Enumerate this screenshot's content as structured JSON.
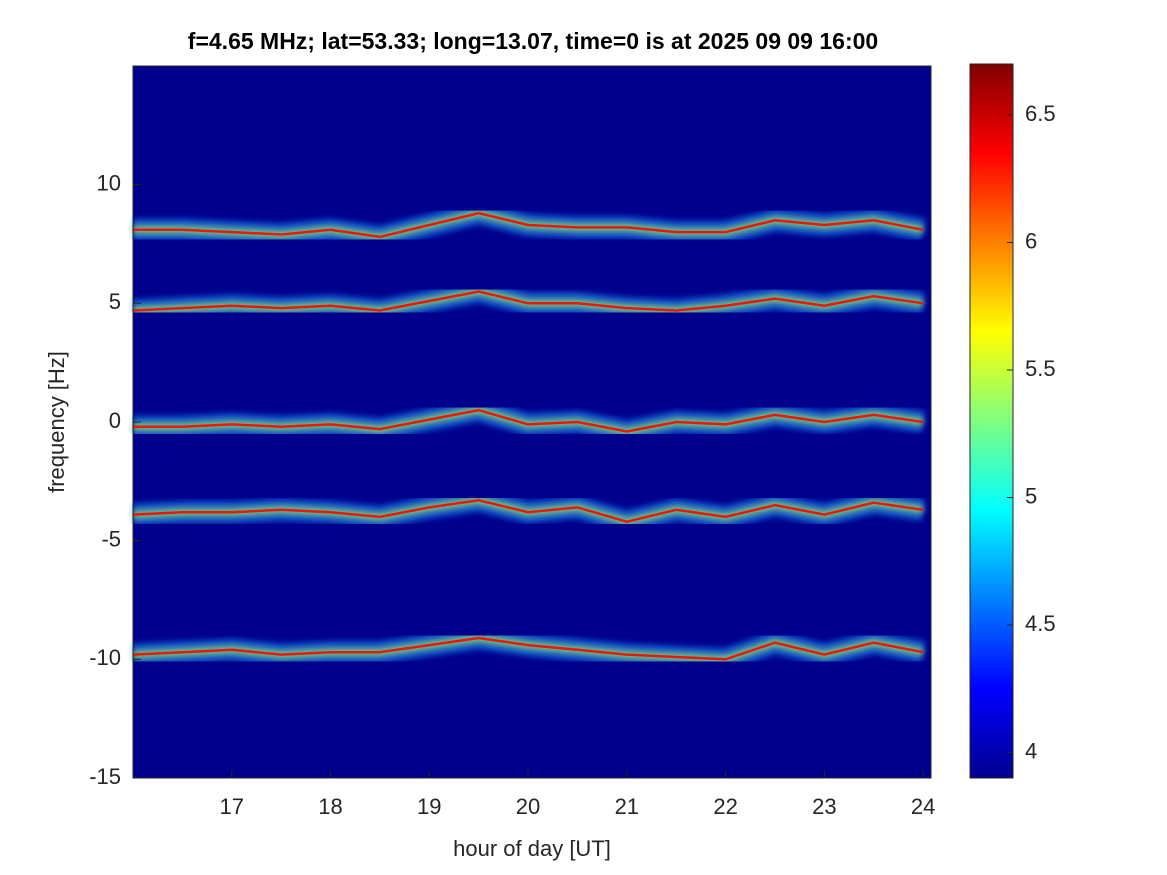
{
  "chart_data": {
    "type": "spectrogram",
    "title": "f=4.65 MHz;  lat=53.33; long=13.07, time=0 is at 2025 09 09 16:00",
    "x_label": "hour of day [UT]",
    "y_label": "frequency [Hz]",
    "xlim": [
      16,
      24.08
    ],
    "xticks": [
      17,
      18,
      19,
      20,
      21,
      22,
      23,
      24
    ],
    "ylim": [
      -15,
      15
    ],
    "yticks": [
      -15,
      -10,
      -5,
      0,
      5,
      10
    ],
    "clim": [
      3.9,
      6.7
    ],
    "cticks": [
      4,
      4.5,
      5,
      5.5,
      6,
      6.5
    ],
    "colormap": "jet",
    "background_color": "#00008c",
    "x": [
      16,
      16.5,
      17,
      17.5,
      18,
      18.5,
      19,
      19.5,
      20,
      20.5,
      21,
      21.5,
      22,
      22.5,
      23,
      23.5,
      24
    ],
    "series": [
      {
        "color": "#e8180c",
        "values": [
          8.1,
          8.1,
          8.0,
          7.9,
          8.1,
          7.8,
          8.3,
          8.8,
          8.3,
          8.2,
          8.2,
          8.0,
          8.0,
          8.5,
          8.3,
          8.5,
          8.1
        ]
      },
      {
        "color": "#e8180c",
        "values": [
          4.7,
          4.8,
          4.9,
          4.8,
          4.9,
          4.7,
          5.1,
          5.5,
          5.0,
          5.0,
          4.8,
          4.7,
          4.9,
          5.2,
          4.9,
          5.3,
          5.0
        ]
      },
      {
        "color": "#e8180c",
        "values": [
          -0.2,
          -0.2,
          -0.1,
          -0.2,
          -0.1,
          -0.3,
          0.1,
          0.5,
          -0.1,
          0.0,
          -0.4,
          0.0,
          -0.1,
          0.3,
          0.0,
          0.3,
          0.0
        ]
      },
      {
        "color": "#e8180c",
        "values": [
          -3.9,
          -3.8,
          -3.8,
          -3.7,
          -3.8,
          -4.0,
          -3.6,
          -3.3,
          -3.8,
          -3.6,
          -4.2,
          -3.7,
          -4.0,
          -3.5,
          -3.9,
          -3.4,
          -3.7
        ]
      },
      {
        "color": "#e8180c",
        "values": [
          -9.8,
          -9.7,
          -9.6,
          -9.8,
          -9.7,
          -9.7,
          -9.4,
          -9.1,
          -9.4,
          -9.6,
          -9.8,
          -9.9,
          -10.0,
          -9.3,
          -9.8,
          -9.3,
          -9.7
        ]
      }
    ]
  }
}
